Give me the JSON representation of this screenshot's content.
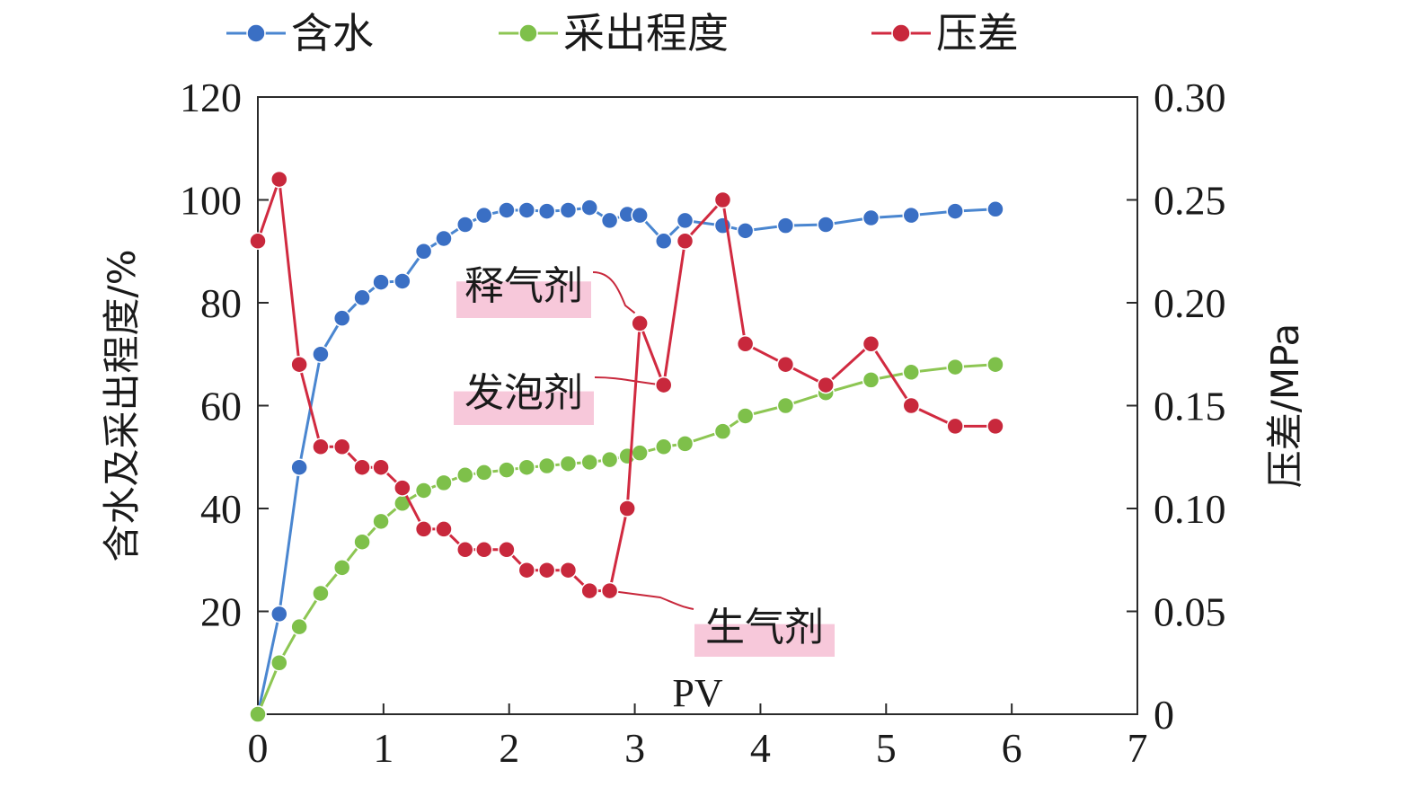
{
  "chart_data": {
    "type": "line",
    "title": "",
    "xlabel": "PV",
    "ylabel_left": "含水及采出程度/%",
    "ylabel_right": "压差/MPa",
    "xlim": [
      0,
      7
    ],
    "ylim_left": [
      0,
      120
    ],
    "ylim_right": [
      0,
      0.3
    ],
    "x_ticks": [
      0,
      1,
      2,
      3,
      4,
      5,
      6,
      7
    ],
    "x_tick_labels": [
      "0",
      "1",
      "2",
      "3",
      "4",
      "5",
      "6",
      "7"
    ],
    "y_left_ticks": [
      20,
      40,
      60,
      80,
      100,
      120
    ],
    "y_left_tick_labels": [
      "20",
      "40",
      "60",
      "80",
      "100",
      "120"
    ],
    "y_right_ticks": [
      0,
      0.05,
      0.1,
      0.15,
      0.2,
      0.25,
      0.3
    ],
    "y_right_tick_labels": [
      "0",
      "0.05",
      "0.10",
      "0.15",
      "0.20",
      "0.25",
      "0.30"
    ],
    "grid": false,
    "legend_position": "top",
    "series": [
      {
        "name": "含水",
        "axis": "left",
        "color": "#3a6fc4",
        "line_color": "#4a86d0",
        "x": [
          0,
          0.17,
          0.33,
          0.5,
          0.67,
          0.83,
          0.98,
          1.15,
          1.32,
          1.48,
          1.65,
          1.8,
          1.98,
          2.14,
          2.3,
          2.47,
          2.64,
          2.8,
          2.94,
          3.04,
          3.23,
          3.4,
          3.7,
          3.88,
          4.2,
          4.52,
          4.88,
          5.2,
          5.55,
          5.87
        ],
        "y": [
          0,
          19.5,
          48,
          70,
          77,
          81,
          84,
          84.2,
          90,
          92.5,
          95.2,
          97,
          98,
          98,
          97.8,
          98,
          98.5,
          96,
          97.2,
          97,
          92,
          96,
          95,
          94,
          95,
          95.2,
          96.5,
          97,
          97.8,
          98.2
        ]
      },
      {
        "name": "采出程度",
        "axis": "left",
        "color": "#7ec04a",
        "line_color": "#8dc653",
        "x": [
          0,
          0.17,
          0.33,
          0.5,
          0.67,
          0.83,
          0.98,
          1.15,
          1.32,
          1.48,
          1.65,
          1.8,
          1.98,
          2.14,
          2.3,
          2.47,
          2.64,
          2.8,
          2.94,
          3.04,
          3.23,
          3.4,
          3.7,
          3.88,
          4.2,
          4.52,
          4.88,
          5.2,
          5.55,
          5.87
        ],
        "y": [
          0,
          10,
          17,
          23.5,
          28.5,
          33.5,
          37.5,
          41,
          43.5,
          45,
          46.5,
          47,
          47.5,
          48,
          48.3,
          48.7,
          49,
          49.5,
          50.2,
          50.8,
          52,
          52.6,
          55,
          58,
          60,
          62.5,
          65,
          66.5,
          67.5,
          68
        ]
      },
      {
        "name": "压差",
        "axis": "right",
        "color": "#c8283c",
        "line_color": "#d12a40",
        "x": [
          0,
          0.17,
          0.33,
          0.5,
          0.67,
          0.83,
          0.98,
          1.15,
          1.32,
          1.48,
          1.65,
          1.8,
          1.98,
          2.14,
          2.3,
          2.47,
          2.64,
          2.8,
          2.94,
          3.04,
          3.23,
          3.4,
          3.7,
          3.88,
          4.2,
          4.52,
          4.88,
          5.2,
          5.55,
          5.87
        ],
        "y": [
          0.23,
          0.26,
          0.17,
          0.13,
          0.13,
          0.12,
          0.12,
          0.11,
          0.09,
          0.09,
          0.08,
          0.08,
          0.08,
          0.07,
          0.07,
          0.07,
          0.06,
          0.06,
          0.1,
          0.19,
          0.16,
          0.23,
          0.25,
          0.18,
          0.17,
          0.16,
          0.18,
          0.15,
          0.14,
          0.14
        ]
      }
    ],
    "annotations": [
      {
        "text": "释气剂",
        "points_to_x": 3.0,
        "points_to_y": 0.195,
        "axis": "right"
      },
      {
        "text": "发泡剂",
        "points_to_x": 3.23,
        "points_to_y": 0.16,
        "axis": "right"
      },
      {
        "text": "生气剂",
        "points_to_x": 2.8,
        "points_to_y": 0.06,
        "axis": "right"
      }
    ],
    "highlight_color": "#f7c8da"
  }
}
